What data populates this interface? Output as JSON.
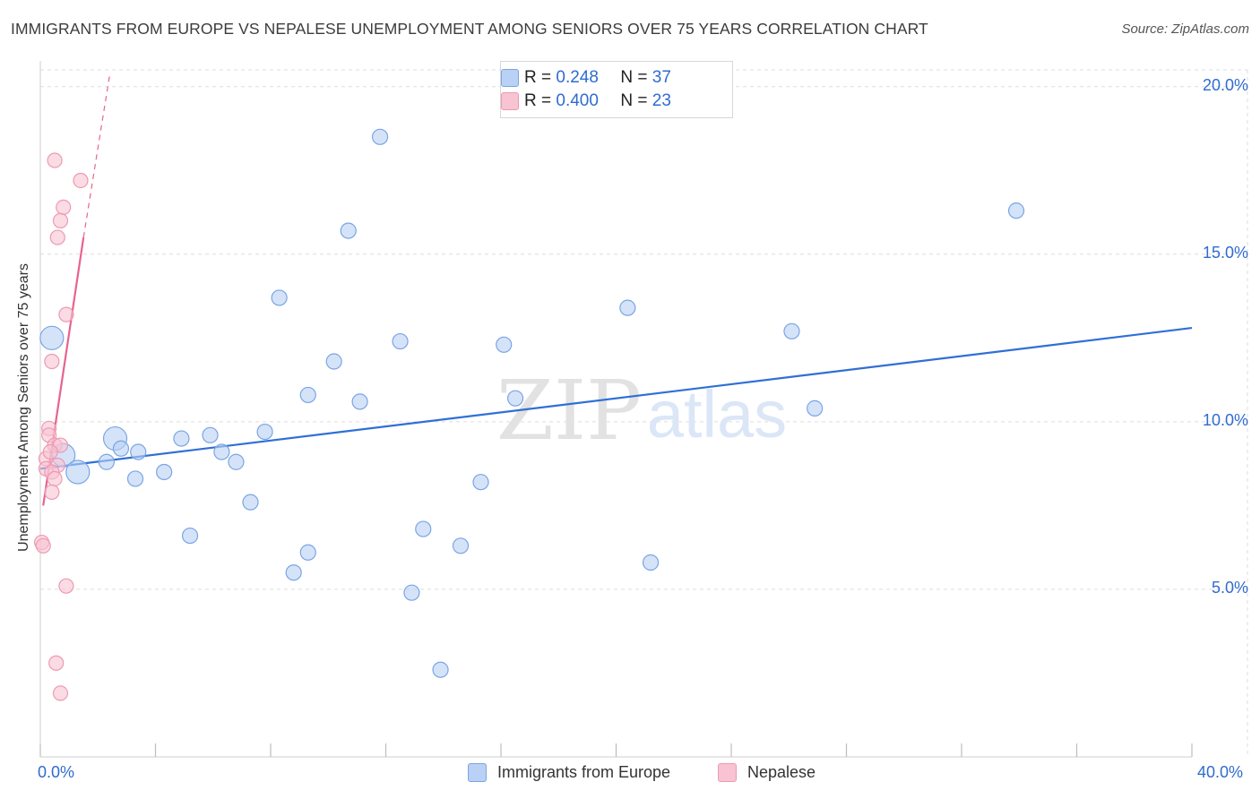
{
  "header": {
    "title": "IMMIGRANTS FROM EUROPE VS NEPALESE UNEMPLOYMENT AMONG SENIORS OVER 75 YEARS CORRELATION CHART",
    "source": "Source: ZipAtlas.com"
  },
  "watermark": {
    "zip": "ZIP",
    "atlas": "atlas"
  },
  "legend": {
    "europe": {
      "r_label": "R =",
      "r_value": "0.248",
      "n_label": "N =",
      "n_value": "37"
    },
    "nepalese": {
      "r_label": "R =",
      "r_value": "0.400",
      "n_label": "N =",
      "n_value": "23"
    }
  },
  "bottom_legend": {
    "europe": "Immigrants from Europe",
    "nepalese": "Nepalese"
  },
  "colors": {
    "europe_fill": "#b9d1f5",
    "europe_stroke": "#7aa5e3",
    "europe_line": "#2f6fd6",
    "nepal_fill": "#f8c3d2",
    "nepal_stroke": "#ec9ab3",
    "nepal_line": "#e8638e",
    "axis_text": "#2f6bd0",
    "grid": "#dddddd"
  },
  "chart_data": {
    "type": "scatter",
    "title": "IMMIGRANTS FROM EUROPE VS NEPALESE UNEMPLOYMENT AMONG SENIORS OVER 75 YEARS CORRELATION CHART",
    "xlabel": "",
    "ylabel": "Unemployment Among Seniors over 75 years",
    "xlim": [
      0,
      40
    ],
    "ylim": [
      0,
      20.5
    ],
    "x_tick_labels": [
      "0.0%",
      "40.0%"
    ],
    "y_ticks": [
      5,
      10,
      15,
      20
    ],
    "y_tick_labels": [
      "5.0%",
      "10.0%",
      "15.0%",
      "20.0%"
    ],
    "grid": true,
    "series": [
      {
        "name": "Immigrants from Europe",
        "r": 0.248,
        "n": 37,
        "trend": {
          "x": [
            0,
            40
          ],
          "y": [
            8.6,
            12.8
          ],
          "style": "solid"
        },
        "points": [
          {
            "x": 0.4,
            "y": 12.5,
            "big": true
          },
          {
            "x": 0.8,
            "y": 9.0,
            "big": true
          },
          {
            "x": 1.3,
            "y": 8.5,
            "big": true
          },
          {
            "x": 2.6,
            "y": 9.5,
            "big": true
          },
          {
            "x": 2.3,
            "y": 8.8
          },
          {
            "x": 2.8,
            "y": 9.2
          },
          {
            "x": 3.4,
            "y": 9.1
          },
          {
            "x": 3.3,
            "y": 8.3
          },
          {
            "x": 4.3,
            "y": 8.5
          },
          {
            "x": 4.9,
            "y": 9.5
          },
          {
            "x": 5.2,
            "y": 6.6
          },
          {
            "x": 5.9,
            "y": 9.6
          },
          {
            "x": 6.3,
            "y": 9.1
          },
          {
            "x": 6.8,
            "y": 8.8
          },
          {
            "x": 7.3,
            "y": 7.6
          },
          {
            "x": 7.8,
            "y": 9.7
          },
          {
            "x": 8.3,
            "y": 13.7
          },
          {
            "x": 8.8,
            "y": 5.5
          },
          {
            "x": 9.3,
            "y": 10.8
          },
          {
            "x": 9.3,
            "y": 6.1
          },
          {
            "x": 10.2,
            "y": 11.8
          },
          {
            "x": 10.7,
            "y": 15.7
          },
          {
            "x": 11.1,
            "y": 10.6
          },
          {
            "x": 11.8,
            "y": 18.5
          },
          {
            "x": 12.5,
            "y": 12.4
          },
          {
            "x": 12.9,
            "y": 4.9
          },
          {
            "x": 13.3,
            "y": 6.8
          },
          {
            "x": 13.9,
            "y": 2.6
          },
          {
            "x": 14.6,
            "y": 6.3
          },
          {
            "x": 15.3,
            "y": 8.2
          },
          {
            "x": 16.1,
            "y": 12.3
          },
          {
            "x": 16.5,
            "y": 10.7
          },
          {
            "x": 20.4,
            "y": 13.4
          },
          {
            "x": 21.2,
            "y": 5.8
          },
          {
            "x": 26.1,
            "y": 12.7
          },
          {
            "x": 26.9,
            "y": 10.4
          },
          {
            "x": 33.9,
            "y": 16.3
          }
        ]
      },
      {
        "name": "Nepalese",
        "r": 0.4,
        "n": 23,
        "trend": {
          "x": [
            0.1,
            1.5
          ],
          "y": [
            7.5,
            15.5
          ],
          "style": "solid",
          "extended": {
            "x": [
              1.5,
              2.4
            ],
            "y": [
              15.5,
              20.3
            ],
            "style": "dashed"
          }
        },
        "points": [
          {
            "x": 0.5,
            "y": 17.8
          },
          {
            "x": 1.4,
            "y": 17.2
          },
          {
            "x": 0.8,
            "y": 16.4
          },
          {
            "x": 0.7,
            "y": 16.0
          },
          {
            "x": 0.6,
            "y": 15.5
          },
          {
            "x": 0.9,
            "y": 13.2
          },
          {
            "x": 0.4,
            "y": 11.8
          },
          {
            "x": 0.3,
            "y": 9.8
          },
          {
            "x": 0.3,
            "y": 9.6
          },
          {
            "x": 0.5,
            "y": 9.3
          },
          {
            "x": 0.7,
            "y": 9.3
          },
          {
            "x": 0.2,
            "y": 8.9
          },
          {
            "x": 0.6,
            "y": 8.7
          },
          {
            "x": 0.2,
            "y": 8.6
          },
          {
            "x": 0.4,
            "y": 8.5
          },
          {
            "x": 0.5,
            "y": 8.3
          },
          {
            "x": 0.4,
            "y": 7.9
          },
          {
            "x": 0.05,
            "y": 6.4
          },
          {
            "x": 0.1,
            "y": 6.3
          },
          {
            "x": 0.9,
            "y": 5.1
          },
          {
            "x": 0.55,
            "y": 2.8
          },
          {
            "x": 0.7,
            "y": 1.9
          },
          {
            "x": 0.35,
            "y": 9.1
          }
        ]
      }
    ]
  }
}
